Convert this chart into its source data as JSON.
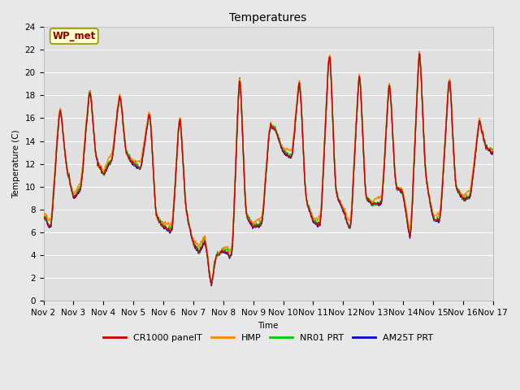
{
  "title": "Temperatures",
  "ylabel": "Temperature (C)",
  "xlabel": "Time",
  "annotation": "WP_met",
  "ylim": [
    0,
    24
  ],
  "yticks": [
    0,
    2,
    4,
    6,
    8,
    10,
    12,
    14,
    16,
    18,
    20,
    22,
    24
  ],
  "xtick_labels": [
    "Nov 2",
    "Nov 3",
    "Nov 4",
    "Nov 5",
    "Nov 6",
    "Nov 7",
    "Nov 8",
    "Nov 9",
    "Nov 10",
    "Nov 11",
    "Nov 12",
    "Nov 13",
    "Nov 14",
    "Nov 15",
    "Nov 16",
    "Nov 17"
  ],
  "series_colors": {
    "CR1000 panelT": "#cc0000",
    "HMP": "#ff8800",
    "NR01 PRT": "#00cc00",
    "AM25T PRT": "#0000cc"
  },
  "fig_bg_color": "#e8e8e8",
  "plot_bg_color": "#e0e0e0",
  "title_fontsize": 10,
  "axis_fontsize": 7.5,
  "tick_fontsize": 7.5,
  "legend_fontsize": 8,
  "linewidth": 1.0
}
